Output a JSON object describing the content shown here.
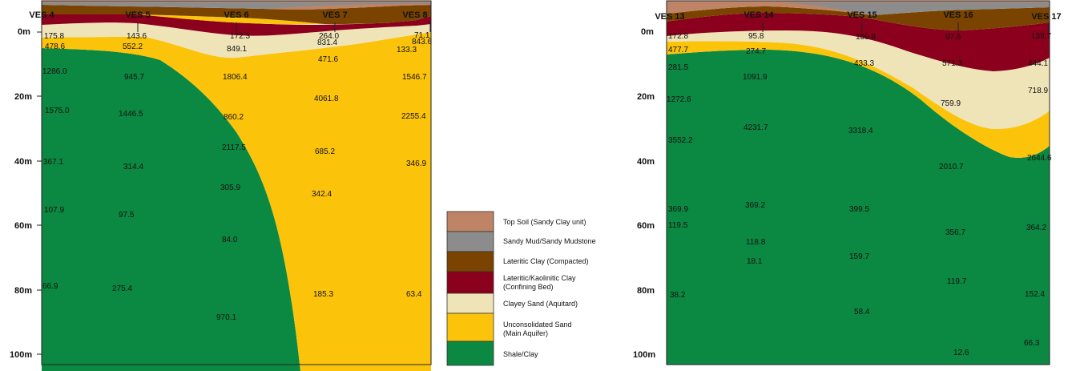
{
  "legend": [
    {
      "label": "Top Soil (Sandy Clay unit)",
      "color": "#bf8465"
    },
    {
      "label": "Sandy Mud/Sandy Mudstone",
      "color": "#8c8c8c"
    },
    {
      "label": "Lateritic Clay (Compacted)",
      "color": "#7a4400"
    },
    {
      "label": "Lateritic/Kaolinitic Clay",
      "label2": "(Confining Bed)",
      "color": "#8b001c"
    },
    {
      "label": "Clayey Sand (Aquitard)",
      "color": "#efe4b8"
    },
    {
      "label": "Unconsolidated Sand",
      "label2": "(Main Aquifer)",
      "color": "#fcc30b"
    },
    {
      "label": "Shale/Clay",
      "color": "#0b8841"
    }
  ],
  "depth_labels": [
    "0m",
    "20m",
    "40m",
    "60m",
    "80m",
    "100m"
  ],
  "left_section": {
    "stations": [
      "VES 4",
      "VES 5",
      "VES 6",
      "VES 7",
      "VES 8"
    ],
    "values": [
      [
        "175.8",
        "143.6",
        "172.3",
        "264.0",
        "71.1",
        "843.6"
      ],
      [
        "478.6",
        "552.2",
        "849.1",
        "831.4",
        "133.3"
      ],
      [
        "471.6"
      ],
      [
        "1286.0",
        "945.7",
        "1806.4",
        "4061.8",
        "1546.7"
      ],
      [
        "860.2"
      ],
      [
        "1575.0",
        "1446.5",
        "2117.5",
        "685.2",
        "2255.4"
      ],
      [
        "367.1",
        "314.4",
        "305.9",
        "342.4",
        "346.9"
      ],
      [
        "107.9",
        "97.5",
        "84.0",
        "185.3",
        "63.4"
      ],
      [
        "66.9",
        "275.4",
        "970.1"
      ]
    ]
  },
  "right_section": {
    "stations": [
      "VES 13",
      "VES 14",
      "VES 15",
      "VES 16",
      "VES 17"
    ],
    "values": [
      [
        "172.8",
        "95.8",
        "159.8",
        "97.6",
        "139.7"
      ],
      [
        "477.7",
        "274.7",
        "433.3",
        "571.3",
        "444.1"
      ],
      [
        "281.5"
      ],
      [
        "1091.9",
        "759.9",
        "718.9",
        "1272.6"
      ],
      [
        "3552.2",
        "4231.7",
        "3318.4",
        "2010.7",
        "2644.6"
      ],
      [
        "369.9",
        "369.2",
        "399.5",
        "356.7",
        "364.2"
      ],
      [
        "119.5",
        "118.8",
        "159.7",
        "119.7",
        "152.4"
      ],
      [
        "38.2",
        "18.1",
        "58.4",
        "12.6",
        "66.3"
      ]
    ]
  }
}
